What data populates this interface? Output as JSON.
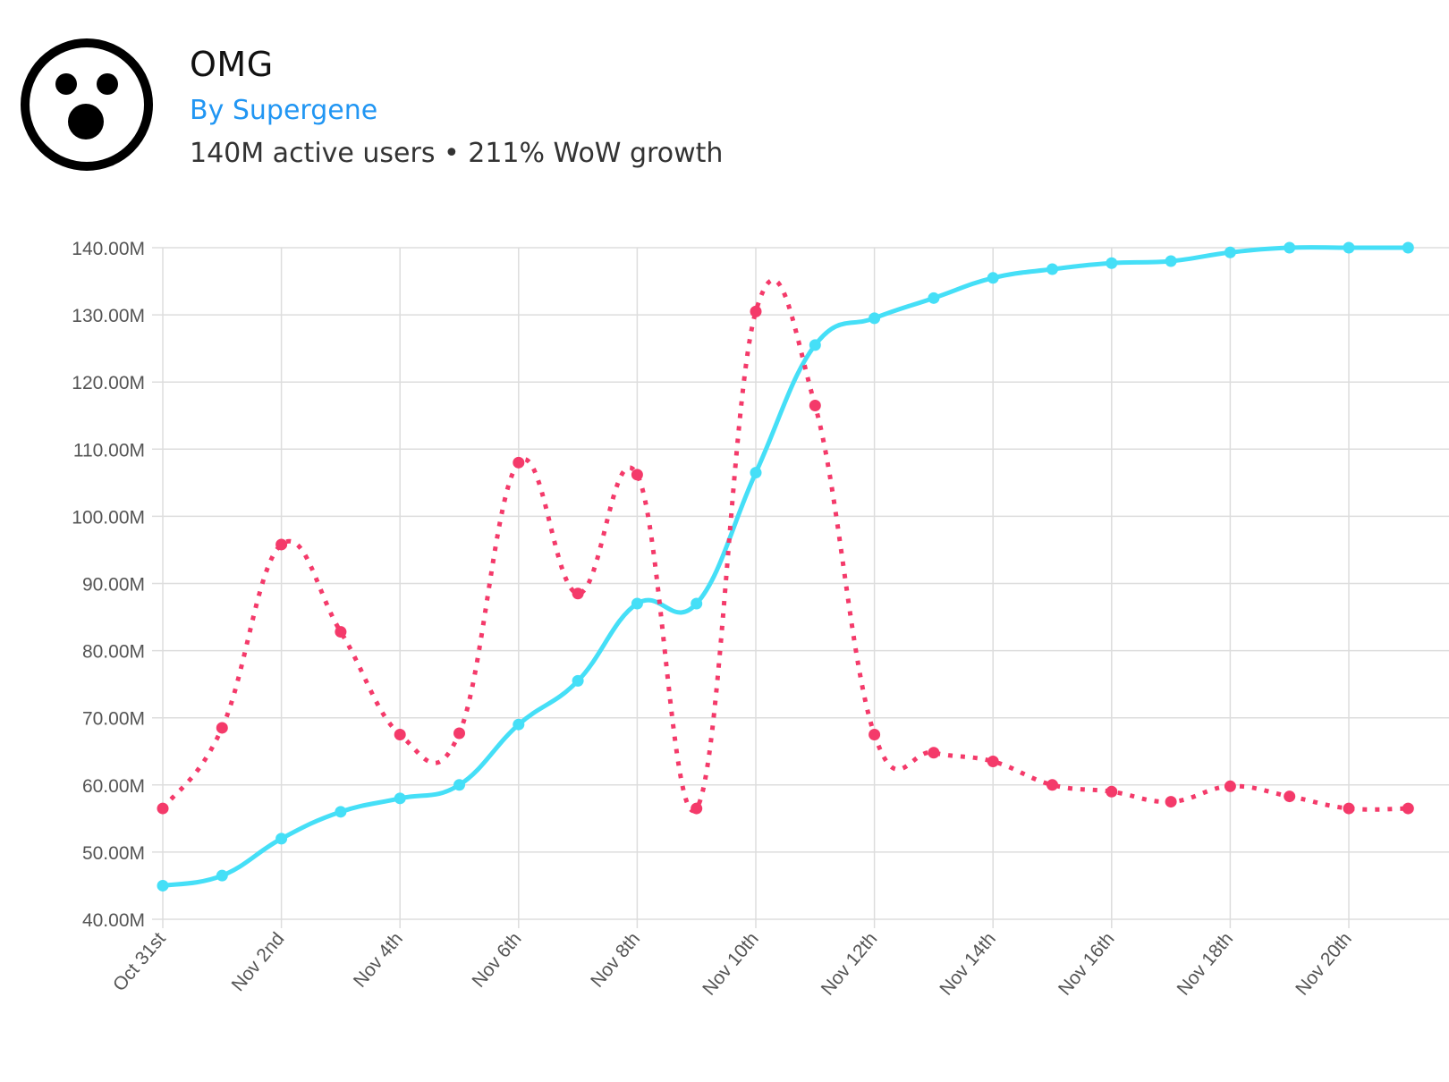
{
  "header": {
    "title": "OMG",
    "author": "By Supergene",
    "stats": "140M active users • 211% WoW growth",
    "icon": "surprised-face-icon"
  },
  "colors": {
    "series_blue": "#45dff7",
    "series_pink": "#f43a6a",
    "grid": "#dddddd",
    "author_link": "#2196f3"
  },
  "chart_data": {
    "type": "line",
    "title": "",
    "xlabel": "",
    "ylabel": "",
    "ylim": [
      40,
      140
    ],
    "y_unit_suffix": "M",
    "y_ticks": [
      "40.00M",
      "50.00M",
      "60.00M",
      "70.00M",
      "80.00M",
      "90.00M",
      "100.00M",
      "110.00M",
      "120.00M",
      "130.00M",
      "140.00M"
    ],
    "x_categories": [
      "Oct 31st",
      "Nov 1st",
      "Nov 2nd",
      "Nov 3rd",
      "Nov 4th",
      "Nov 5th",
      "Nov 6th",
      "Nov 7th",
      "Nov 8th",
      "Nov 9th",
      "Nov 10th",
      "Nov 11th",
      "Nov 12th",
      "Nov 13th",
      "Nov 14th",
      "Nov 15th",
      "Nov 16th",
      "Nov 17th",
      "Nov 18th",
      "Nov 19th",
      "Nov 20th",
      "Nov 21st"
    ],
    "x_tick_labels": [
      "Oct 31st",
      "Nov 2nd",
      "Nov 4th",
      "Nov 6th",
      "Nov 8th",
      "Nov 10th",
      "Nov 12th",
      "Nov 14th",
      "Nov 16th",
      "Nov 18th",
      "Nov 20th"
    ],
    "grid": true,
    "series": [
      {
        "style": "solid",
        "color": "#45dff7",
        "values": [
          45.0,
          46.5,
          52.0,
          56.0,
          58.0,
          60.0,
          69.0,
          75.5,
          87.0,
          87.0,
          106.5,
          125.5,
          129.5,
          132.5,
          135.5,
          136.8,
          137.7,
          138.0,
          139.3,
          140.0,
          140.0,
          140.0
        ]
      },
      {
        "style": "dotted",
        "color": "#f43a6a",
        "values": [
          56.5,
          68.5,
          95.8,
          82.8,
          67.5,
          67.7,
          108.0,
          88.5,
          106.2,
          56.5,
          130.5,
          116.5,
          67.5,
          64.8,
          63.5,
          60.0,
          59.0,
          57.5,
          59.8,
          58.3,
          56.5,
          56.5
        ]
      }
    ]
  }
}
